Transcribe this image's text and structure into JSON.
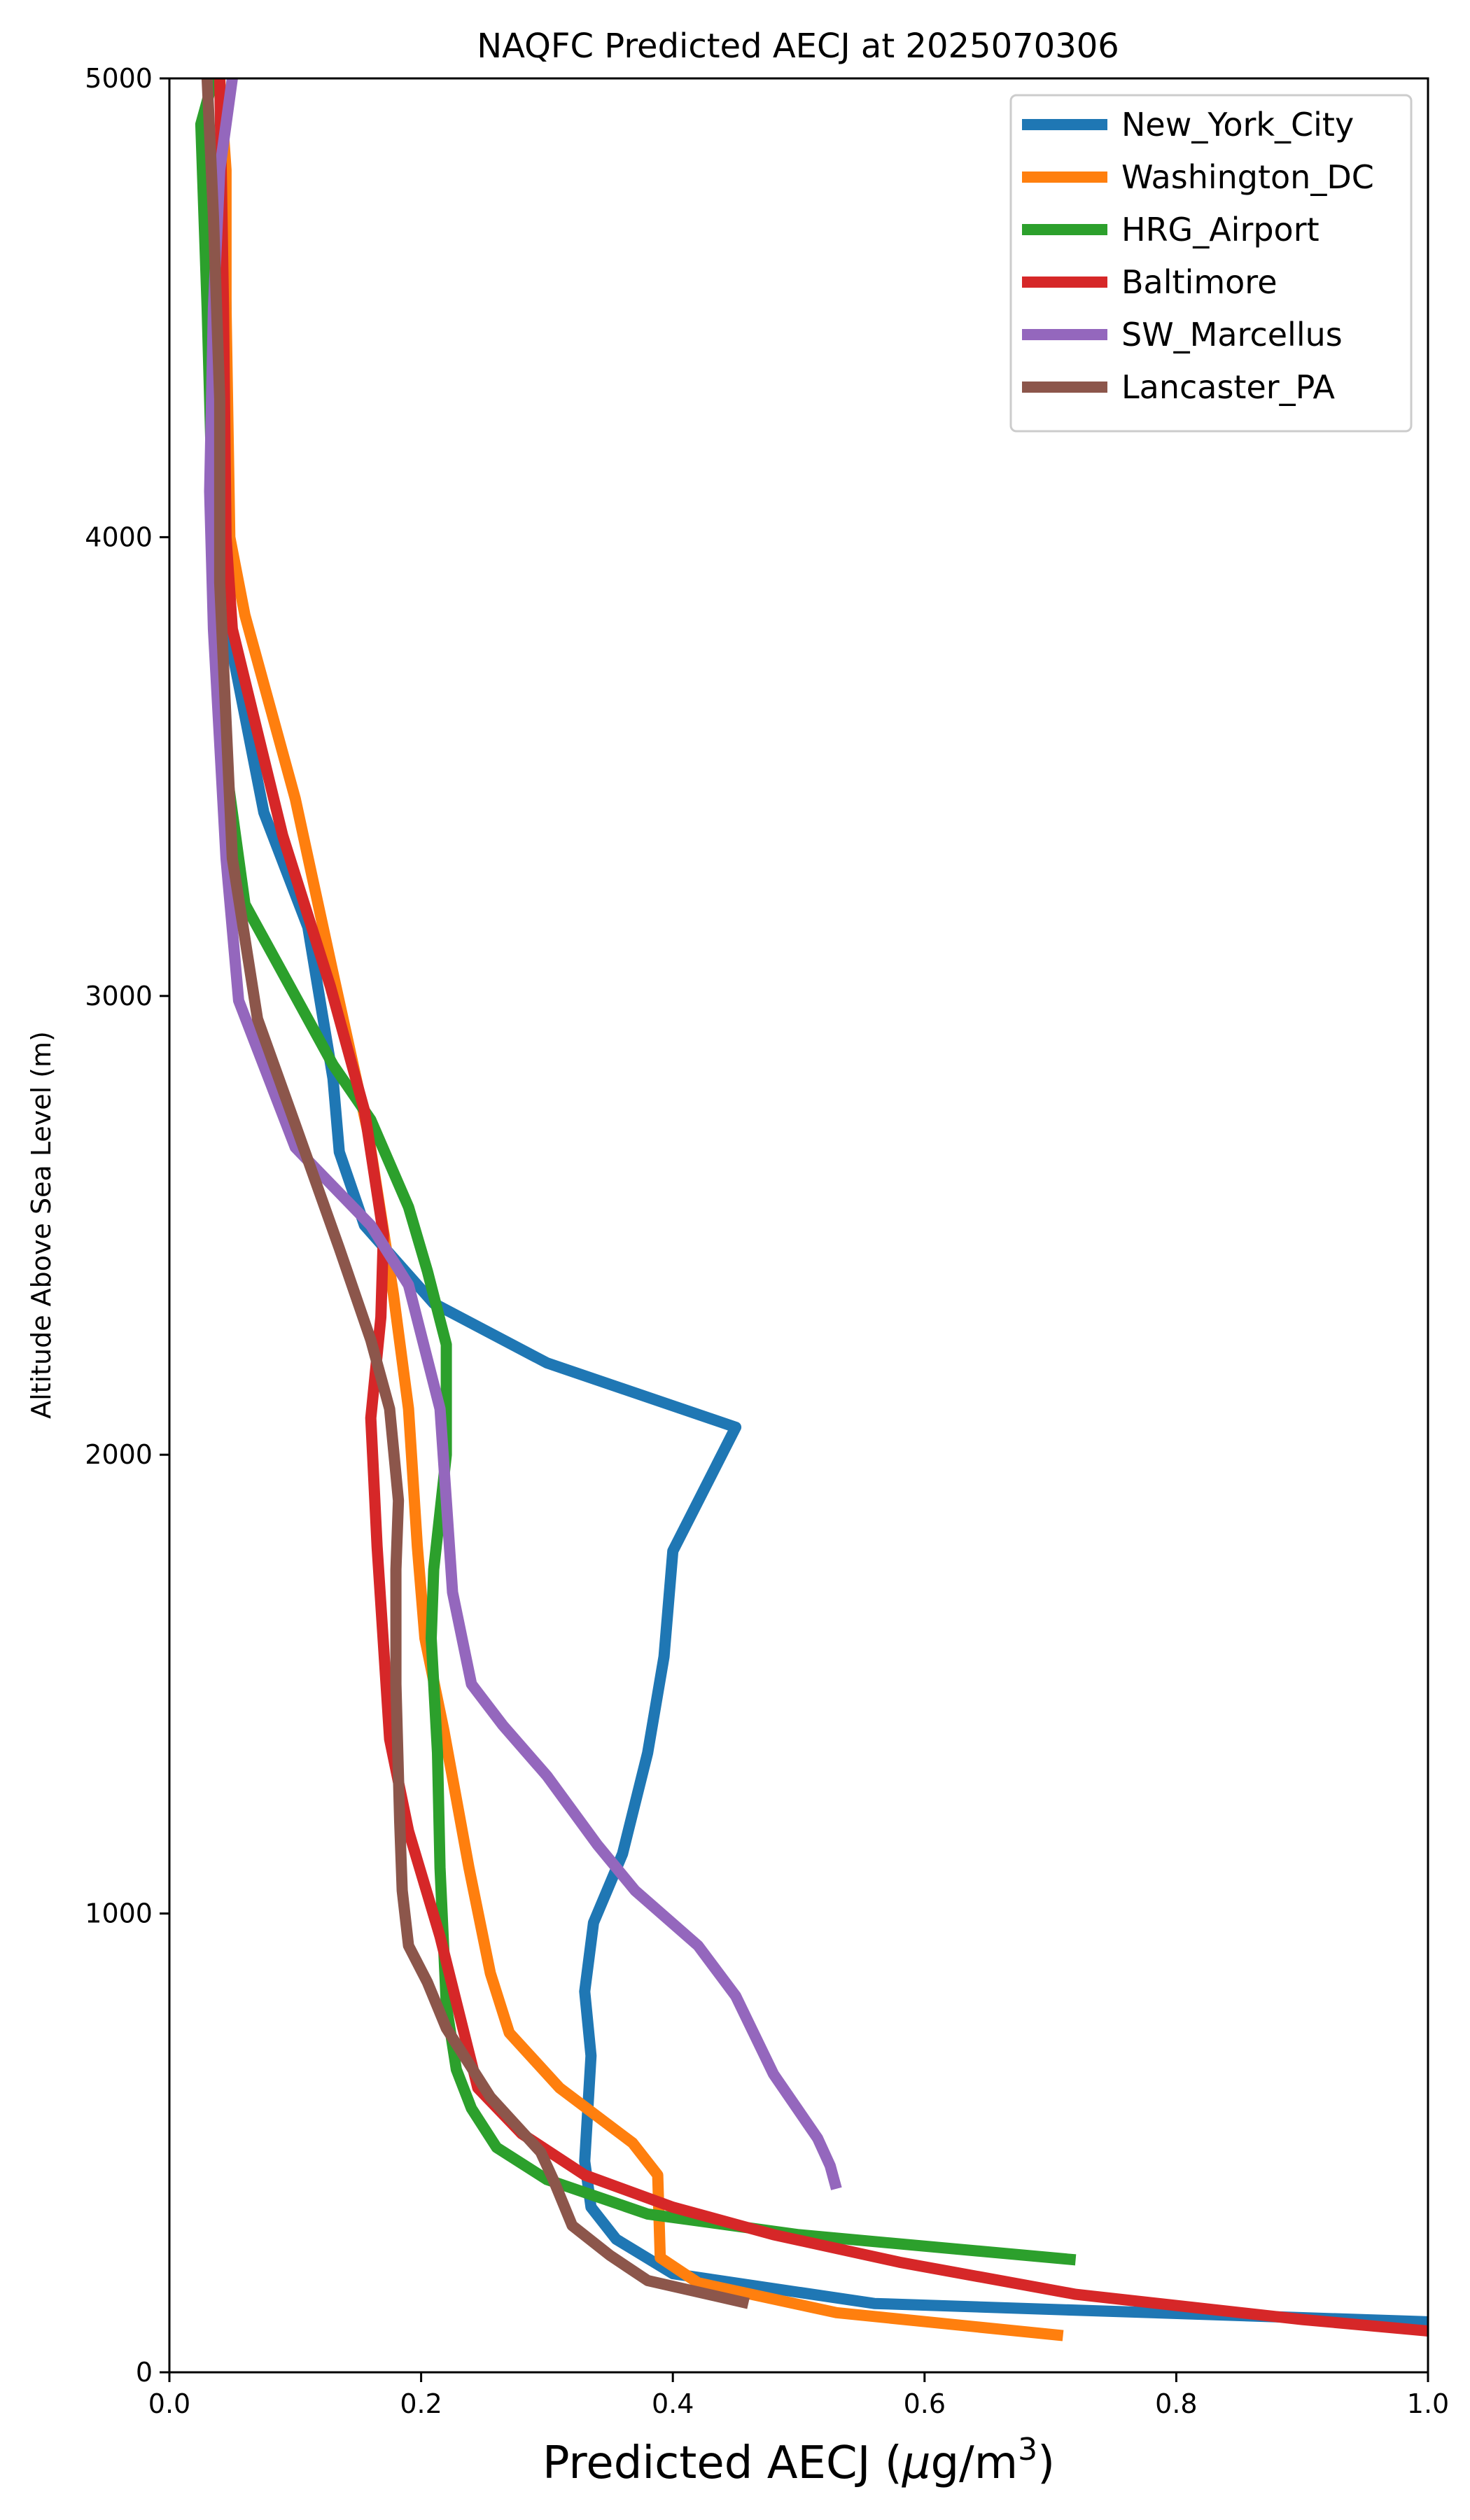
{
  "chart_data": {
    "type": "line",
    "title": "NAQFC Predicted AECJ at 2025070306",
    "xlabel_main": "Predicted AECJ (",
    "xlabel_mu": "μ",
    "xlabel_unit": "g/m",
    "xlabel_sup": "3",
    "xlabel_close": ")",
    "ylabel": "Altitude Above Sea Level (m)",
    "xlim": [
      0.0,
      1.0
    ],
    "ylim": [
      0,
      5000
    ],
    "xticks": [
      "0.0",
      "0.2",
      "0.4",
      "0.6",
      "0.8",
      "1.0"
    ],
    "xtick_values": [
      0.0,
      0.2,
      0.4,
      0.6,
      0.8,
      1.0
    ],
    "yticks": [
      "0",
      "1000",
      "2000",
      "3000",
      "4000",
      "5000"
    ],
    "ytick_values": [
      0,
      1000,
      2000,
      3000,
      4000,
      5000
    ],
    "grid": false,
    "legend_position": "top-right",
    "series": [
      {
        "name": "New_York_City",
        "color": "#1f77b4",
        "points": [
          [
            1.0,
            110
          ],
          [
            0.56,
            150
          ],
          [
            0.4,
            215
          ],
          [
            0.355,
            290
          ],
          [
            0.335,
            360
          ],
          [
            0.33,
            460
          ],
          [
            0.335,
            690
          ],
          [
            0.33,
            830
          ],
          [
            0.337,
            980
          ],
          [
            0.36,
            1130
          ],
          [
            0.38,
            1350
          ],
          [
            0.393,
            1560
          ],
          [
            0.4,
            1790
          ],
          [
            0.45,
            2060
          ],
          [
            0.3,
            2200
          ],
          [
            0.21,
            2330
          ],
          [
            0.155,
            2500
          ],
          [
            0.135,
            2660
          ],
          [
            0.13,
            2820
          ],
          [
            0.11,
            3150
          ],
          [
            0.075,
            3400
          ],
          [
            0.05,
            3750
          ],
          [
            0.045,
            4000
          ],
          [
            0.045,
            4500
          ],
          [
            0.04,
            5000
          ]
        ]
      },
      {
        "name": "Washington_DC",
        "color": "#ff7f0e",
        "points": [
          [
            0.71,
            80
          ],
          [
            0.53,
            130
          ],
          [
            0.42,
            195
          ],
          [
            0.39,
            250
          ],
          [
            0.388,
            430
          ],
          [
            0.368,
            500
          ],
          [
            0.31,
            620
          ],
          [
            0.27,
            740
          ],
          [
            0.255,
            870
          ],
          [
            0.238,
            1100
          ],
          [
            0.218,
            1400
          ],
          [
            0.203,
            1600
          ],
          [
            0.197,
            1800
          ],
          [
            0.19,
            2100
          ],
          [
            0.178,
            2350
          ],
          [
            0.158,
            2700
          ],
          [
            0.13,
            3050
          ],
          [
            0.1,
            3430
          ],
          [
            0.06,
            3830
          ],
          [
            0.048,
            4000
          ],
          [
            0.045,
            4500
          ],
          [
            0.045,
            4800
          ],
          [
            0.04,
            5000
          ]
        ]
      },
      {
        "name": "HRG_Airport",
        "color": "#2ca02c",
        "points": [
          [
            0.72,
            245
          ],
          [
            0.5,
            300
          ],
          [
            0.38,
            345
          ],
          [
            0.3,
            420
          ],
          [
            0.26,
            490
          ],
          [
            0.24,
            575
          ],
          [
            0.228,
            660
          ],
          [
            0.22,
            800
          ],
          [
            0.215,
            1100
          ],
          [
            0.213,
            1350
          ],
          [
            0.208,
            1600
          ],
          [
            0.21,
            1750
          ],
          [
            0.22,
            2000
          ],
          [
            0.22,
            2240
          ],
          [
            0.205,
            2400
          ],
          [
            0.19,
            2540
          ],
          [
            0.16,
            2730
          ],
          [
            0.13,
            2850
          ],
          [
            0.06,
            3200
          ],
          [
            0.045,
            3500
          ],
          [
            0.04,
            3800
          ],
          [
            0.035,
            4000
          ],
          [
            0.03,
            4500
          ],
          [
            0.025,
            4900
          ],
          [
            0.035,
            5000
          ]
        ]
      },
      {
        "name": "Baltimore",
        "color": "#d62728",
        "points": [
          [
            1.0,
            90
          ],
          [
            0.9,
            115
          ],
          [
            0.72,
            170
          ],
          [
            0.58,
            240
          ],
          [
            0.48,
            300
          ],
          [
            0.4,
            360
          ],
          [
            0.33,
            430
          ],
          [
            0.28,
            520
          ],
          [
            0.245,
            620
          ],
          [
            0.235,
            730
          ],
          [
            0.215,
            950
          ],
          [
            0.19,
            1180
          ],
          [
            0.175,
            1380
          ],
          [
            0.165,
            1800
          ],
          [
            0.16,
            2080
          ],
          [
            0.168,
            2300
          ],
          [
            0.17,
            2480
          ],
          [
            0.155,
            2750
          ],
          [
            0.128,
            3020
          ],
          [
            0.09,
            3350
          ],
          [
            0.05,
            3800
          ],
          [
            0.045,
            4000
          ],
          [
            0.043,
            4500
          ],
          [
            0.04,
            5000
          ]
        ]
      },
      {
        "name": "SW_Marcellus",
        "color": "#9467bd",
        "points": [
          [
            0.53,
            400
          ],
          [
            0.525,
            450
          ],
          [
            0.515,
            510
          ],
          [
            0.48,
            650
          ],
          [
            0.45,
            820
          ],
          [
            0.42,
            930
          ],
          [
            0.37,
            1050
          ],
          [
            0.34,
            1150
          ],
          [
            0.3,
            1300
          ],
          [
            0.265,
            1410
          ],
          [
            0.24,
            1500
          ],
          [
            0.225,
            1700
          ],
          [
            0.22,
            1900
          ],
          [
            0.215,
            2100
          ],
          [
            0.19,
            2370
          ],
          [
            0.16,
            2500
          ],
          [
            0.1,
            2670
          ],
          [
            0.055,
            2990
          ],
          [
            0.045,
            3300
          ],
          [
            0.035,
            3800
          ],
          [
            0.032,
            4100
          ],
          [
            0.035,
            4500
          ],
          [
            0.04,
            4800
          ],
          [
            0.045,
            4900
          ],
          [
            0.05,
            5000
          ]
        ]
      },
      {
        "name": "Lancaster_PA",
        "color": "#8c564b",
        "points": [
          [
            0.46,
            150
          ],
          [
            0.38,
            200
          ],
          [
            0.35,
            255
          ],
          [
            0.32,
            320
          ],
          [
            0.305,
            420
          ],
          [
            0.295,
            480
          ],
          [
            0.255,
            600
          ],
          [
            0.22,
            750
          ],
          [
            0.205,
            850
          ],
          [
            0.19,
            930
          ],
          [
            0.185,
            1050
          ],
          [
            0.183,
            1200
          ],
          [
            0.18,
            1500
          ],
          [
            0.18,
            1750
          ],
          [
            0.182,
            1900
          ],
          [
            0.175,
            2100
          ],
          [
            0.16,
            2250
          ],
          [
            0.135,
            2450
          ],
          [
            0.1,
            2720
          ],
          [
            0.07,
            2950
          ],
          [
            0.05,
            3300
          ],
          [
            0.045,
            3600
          ],
          [
            0.04,
            3900
          ],
          [
            0.04,
            4300
          ],
          [
            0.035,
            4700
          ],
          [
            0.03,
            5000
          ]
        ]
      }
    ]
  }
}
